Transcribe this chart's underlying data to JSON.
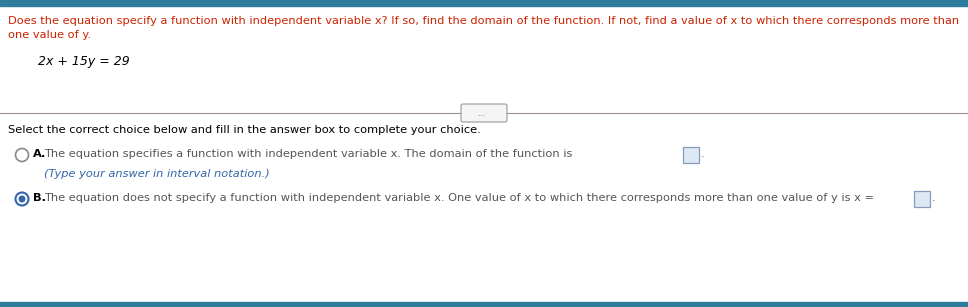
{
  "bg_color": "#ffffff",
  "top_bar_color": "#2e7d9e",
  "bottom_bar_color": "#2e7d9e",
  "header_text_line1": "Does the equation specify a function with independent variable x? If so, find the domain of the function. If not, find a value of x to which there corresponds more than",
  "header_text_line2": "one value of y.",
  "equation": "2x + 15y = 29",
  "divider_color": "#a090a0",
  "select_text": "Select the correct choice below and fill in the answer box to complete your choice.",
  "choice_a_text": "The equation specifies a function with independent variable x. The domain of the function is",
  "choice_a_subtext": "(Type your answer in interval notation.)",
  "choice_b_text": "The equation does not specify a function with independent variable x. One value of x to which there corresponds more than one value of y is x =",
  "header_color": "#cc2200",
  "body_text_color": "#000000",
  "choice_text_color": "#555555",
  "choice_subtext_color": "#3366aa",
  "radio_unselected_color": "#888888",
  "radio_selected_outer": "#3366aa",
  "radio_selected_inner": "#3366aa",
  "box_edge_color": "#8899bb",
  "box_face_color": "#dde8f5",
  "figure_width": 9.68,
  "figure_height": 3.07,
  "dpi": 100
}
